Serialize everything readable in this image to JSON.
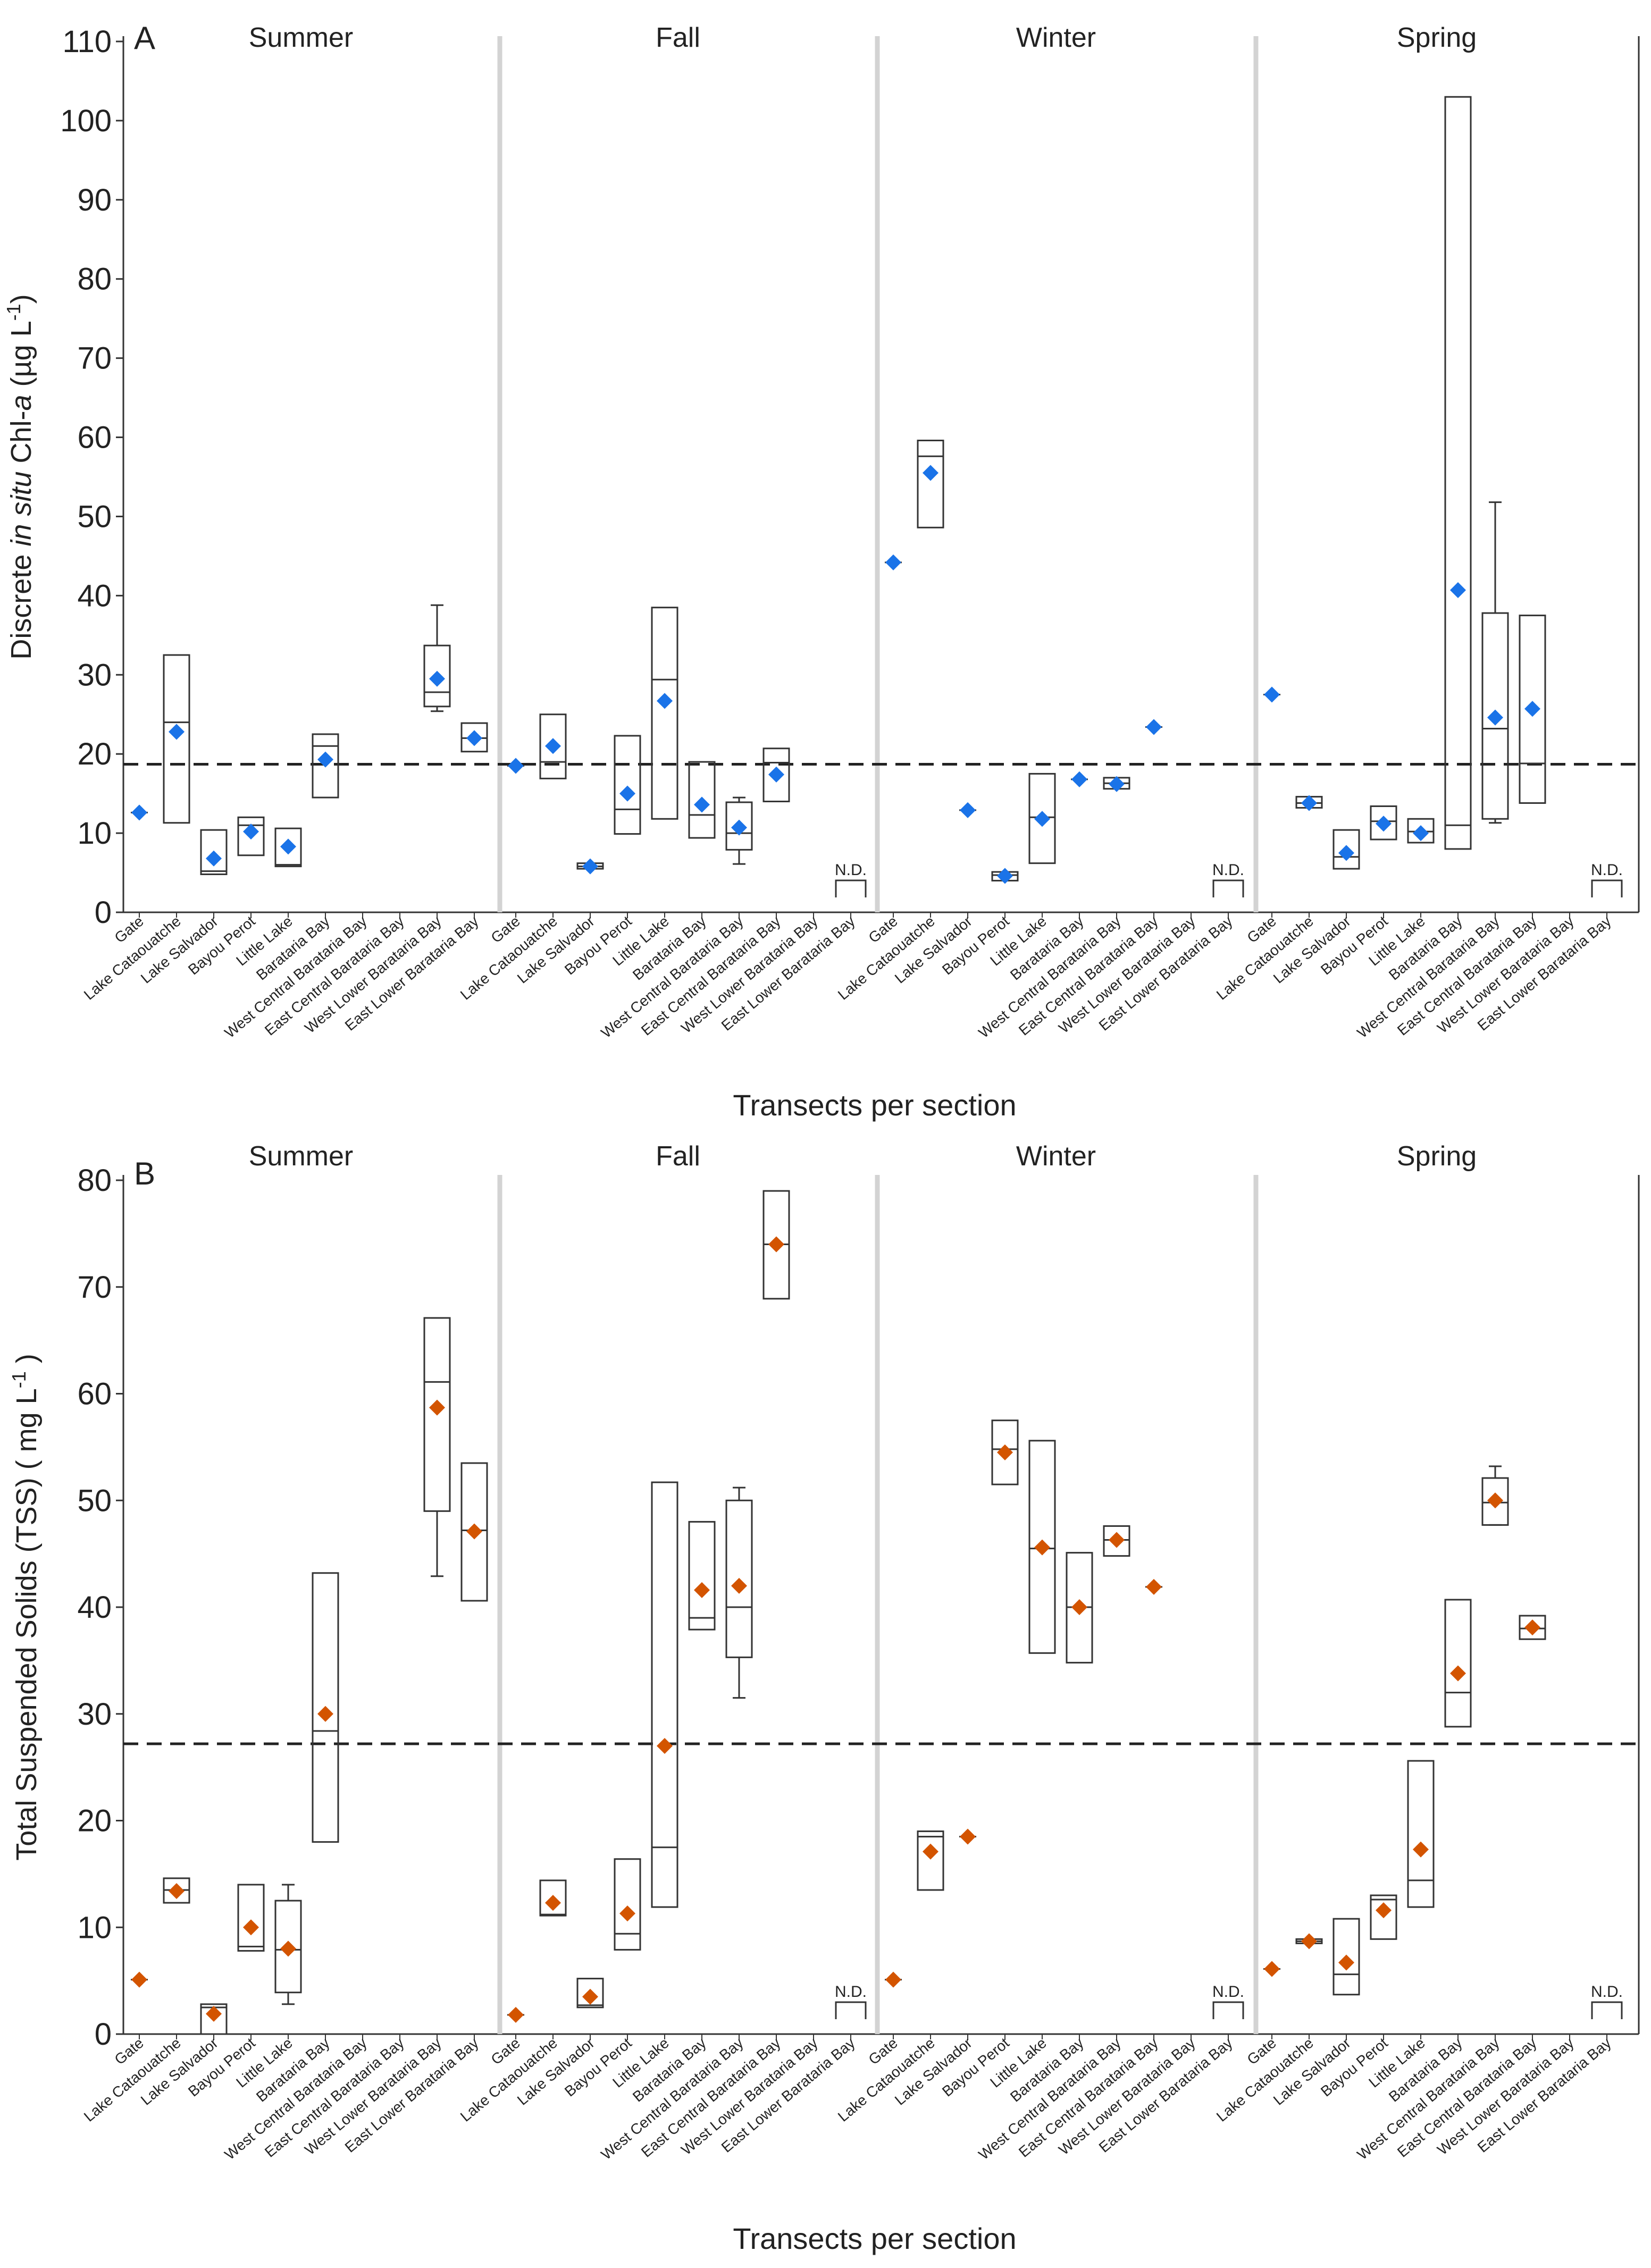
{
  "figure": {
    "xlabel": "Transects per section",
    "seasons": [
      "Summer",
      "Fall",
      "Winter",
      "Spring"
    ],
    "na_label": "N.D.",
    "colors": {
      "chl": "#1a73e8",
      "tss": "#d35400",
      "divider": "#d3d3d3",
      "box": "#333333",
      "dash": "#222222"
    }
  },
  "chart_data": [
    {
      "type": "box",
      "panel_label": "A",
      "ylabel_parts": [
        "Discrete ",
        "in situ",
        " Chl-",
        "a",
        " (µg L",
        "-1",
        ")"
      ],
      "ylim": [
        0,
        110
      ],
      "yticks": [
        0,
        10,
        20,
        30,
        40,
        50,
        60,
        70,
        80,
        90,
        100,
        110
      ],
      "reference_line": 18.7,
      "categories": [
        "Gate",
        "Lake Cataouatche",
        "Lake Salvador",
        "Bayou Perot",
        "Little Lake",
        "Barataria Bay",
        "West Central Barataria Bay",
        "East Central Barataria Bay",
        "West Lower Barataria Bay",
        "East Lower Barataria Bay"
      ],
      "marker": "chl",
      "seasons": [
        {
          "name": "Summer",
          "items": [
            {
              "mean": 12.6
            },
            {
              "q1": 11.3,
              "median": 24,
              "q3": 32.5,
              "mean": 22.8
            },
            {
              "q1": 4.8,
              "median": 5.2,
              "q3": 10.4,
              "mean": 6.8
            },
            {
              "q1": 7.2,
              "median": 11,
              "q3": 12,
              "mean": 10.2
            },
            {
              "q1": 5.8,
              "median": 6,
              "q3": 10.6,
              "mean": 8.3
            },
            {
              "q1": 14.5,
              "median": 21,
              "q3": 22.5,
              "mean": 19.3
            },
            null,
            null,
            {
              "q1": 26,
              "median": 27.8,
              "q3": 33.7,
              "mean": 29.5,
              "wlo": 25.4,
              "whi": 38.8
            },
            {
              "q1": 20.3,
              "median": 22,
              "q3": 23.9,
              "mean": 22
            }
          ]
        },
        {
          "name": "Fall",
          "items": [
            {
              "mean": 18.5
            },
            {
              "q1": 16.9,
              "median": 19,
              "q3": 25,
              "mean": 21
            },
            {
              "q1": 5.5,
              "median": 5.8,
              "q3": 6.2,
              "mean": 5.8
            },
            {
              "q1": 9.9,
              "median": 13,
              "q3": 22.3,
              "mean": 15
            },
            {
              "q1": 11.8,
              "median": 29.4,
              "q3": 38.5,
              "mean": 26.7
            },
            {
              "q1": 9.4,
              "median": 12.3,
              "q3": 19,
              "mean": 13.6
            },
            {
              "q1": 7.9,
              "median": 10,
              "q3": 13.9,
              "mean": 10.7,
              "wlo": 6.1,
              "whi": 14.5
            },
            {
              "q1": 14,
              "median": 18.9,
              "q3": 20.7,
              "mean": 17.4
            },
            null,
            "nd"
          ]
        },
        {
          "name": "Winter",
          "items": [
            {
              "mean": 44.2
            },
            {
              "q1": 48.6,
              "median": 57.6,
              "q3": 59.6,
              "mean": 55.5
            },
            {
              "mean": 12.9
            },
            {
              "q1": 4,
              "median": 4.7,
              "q3": 5.1,
              "mean": 4.6
            },
            {
              "q1": 6.2,
              "median": 12,
              "q3": 17.5,
              "mean": 11.8
            },
            {
              "mean": 16.8
            },
            {
              "q1": 15.6,
              "median": 16.3,
              "q3": 17,
              "mean": 16.2
            },
            {
              "mean": 23.4
            },
            null,
            "nd"
          ]
        },
        {
          "name": "Spring",
          "items": [
            {
              "mean": 27.5
            },
            {
              "q1": 13.2,
              "median": 13.8,
              "q3": 14.6,
              "mean": 13.8
            },
            {
              "q1": 5.5,
              "median": 7,
              "q3": 10.4,
              "mean": 7.5
            },
            {
              "q1": 9.2,
              "median": 11.5,
              "q3": 13.4,
              "mean": 11.2
            },
            {
              "q1": 8.8,
              "median": 10.2,
              "q3": 11.8,
              "mean": 10
            },
            {
              "q1": 8,
              "median": 11,
              "q3": 103,
              "mean": 40.7
            },
            {
              "q1": 11.8,
              "median": 23.2,
              "q3": 37.8,
              "mean": 24.6,
              "wlo": 11.3,
              "whi": 51.8
            },
            {
              "q1": 13.8,
              "median": 18.8,
              "q3": 37.5,
              "mean": 25.7
            },
            null,
            "nd"
          ]
        }
      ]
    },
    {
      "type": "box",
      "panel_label": "B",
      "ylabel_parts": [
        "Total Suspended Solids (TSS) ( mg L",
        "-1",
        " )"
      ],
      "ylim": [
        0,
        80
      ],
      "yticks": [
        0,
        10,
        20,
        30,
        40,
        50,
        60,
        70,
        80
      ],
      "reference_line": 27.2,
      "categories": [
        "Gate",
        "Lake Cataouatche",
        "Lake Salvador",
        "Bayou Perot",
        "Little Lake",
        "Barataria Bay",
        "West Central Barataria Bay",
        "East Central Barataria Bay",
        "West Lower Barataria Bay",
        "East Lower Barataria Bay"
      ],
      "marker": "tss",
      "seasons": [
        {
          "name": "Summer",
          "items": [
            {
              "mean": 5.1
            },
            {
              "q1": 12.3,
              "median": 13.5,
              "q3": 14.6,
              "mean": 13.4
            },
            {
              "q1": 0,
              "median": 2.5,
              "q3": 2.8,
              "mean": 1.9
            },
            {
              "q1": 7.8,
              "median": 8.2,
              "q3": 14,
              "mean": 10
            },
            {
              "q1": 3.9,
              "median": 7.9,
              "q3": 12.5,
              "mean": 8,
              "wlo": 2.8,
              "whi": 14
            },
            {
              "q1": 18,
              "median": 28.4,
              "q3": 43.2,
              "mean": 30
            },
            null,
            null,
            {
              "q1": 49,
              "median": 61.1,
              "q3": 67.1,
              "mean": 58.7,
              "wlo": 42.9,
              "whi": 67.1
            },
            {
              "q1": 40.6,
              "median": 47.2,
              "q3": 53.5,
              "mean": 47.1
            }
          ]
        },
        {
          "name": "Fall",
          "items": [
            {
              "mean": 1.8
            },
            {
              "q1": 11.1,
              "median": 11.2,
              "q3": 14.4,
              "mean": 12.3
            },
            {
              "q1": 2.5,
              "median": 2.7,
              "q3": 5.2,
              "mean": 3.5
            },
            {
              "q1": 7.9,
              "median": 9.4,
              "q3": 16.4,
              "mean": 11.3
            },
            {
              "q1": 11.9,
              "median": 17.5,
              "q3": 51.7,
              "mean": 27
            },
            {
              "q1": 37.9,
              "median": 39,
              "q3": 48,
              "mean": 41.6
            },
            {
              "q1": 35.3,
              "median": 40,
              "q3": 50,
              "mean": 42,
              "wlo": 31.5,
              "whi": 51.2
            },
            {
              "q1": 68.9,
              "median": 74,
              "q3": 79,
              "mean": 74
            },
            null,
            "nd"
          ]
        },
        {
          "name": "Winter",
          "items": [
            {
              "mean": 5.1
            },
            {
              "q1": 13.5,
              "median": 18.5,
              "q3": 19,
              "mean": 17.1
            },
            {
              "mean": 18.5
            },
            {
              "q1": 51.5,
              "median": 54.8,
              "q3": 57.5,
              "mean": 54.5
            },
            {
              "q1": 35.7,
              "median": 45.5,
              "q3": 55.6,
              "mean": 45.6
            },
            {
              "q1": 34.8,
              "median": 40,
              "q3": 45.1,
              "mean": 40
            },
            {
              "q1": 44.8,
              "median": 46.3,
              "q3": 47.6,
              "mean": 46.3
            },
            {
              "mean": 41.9
            },
            null,
            "nd"
          ]
        },
        {
          "name": "Spring",
          "items": [
            {
              "mean": 6.1
            },
            {
              "q1": 8.5,
              "median": 8.7,
              "q3": 8.9,
              "mean": 8.7
            },
            {
              "q1": 3.7,
              "median": 5.6,
              "q3": 10.8,
              "mean": 6.7
            },
            {
              "q1": 8.9,
              "median": 12.6,
              "q3": 13,
              "mean": 11.6
            },
            {
              "q1": 11.9,
              "median": 14.4,
              "q3": 25.6,
              "mean": 17.3
            },
            {
              "q1": 28.8,
              "median": 32,
              "q3": 40.7,
              "mean": 33.8
            },
            {
              "q1": 47.7,
              "median": 49.8,
              "q3": 52.1,
              "mean": 50,
              "wlo": 47.7,
              "whi": 53.2
            },
            {
              "q1": 37,
              "median": 38,
              "q3": 39.2,
              "mean": 38.1
            },
            null,
            "nd"
          ]
        }
      ]
    }
  ]
}
